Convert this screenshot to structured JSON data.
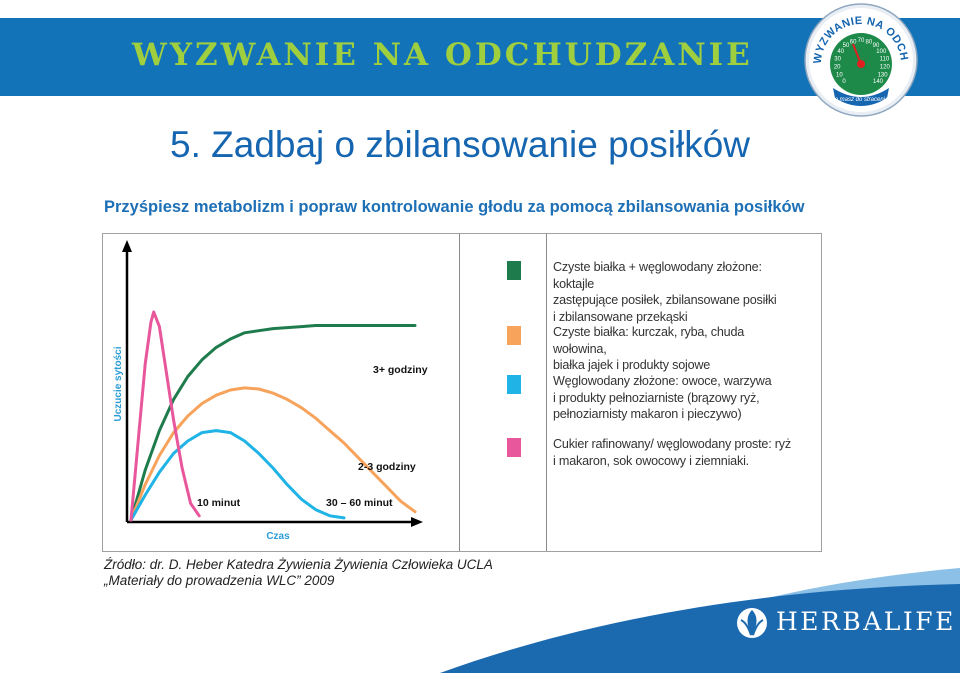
{
  "header": {
    "banner_title": "WYZWANIE NA ODCHUDZANIE",
    "badge": {
      "arc_text": "WYZWANIE NA ODCHUDZANIE",
      "bottom_text": "Co masz do stracenia?",
      "dial_numbers": [
        "0",
        "10",
        "20",
        "30",
        "40",
        "50",
        "60",
        "70",
        "80",
        "90",
        "100",
        "110",
        "120",
        "130",
        "140"
      ]
    },
    "colors": {
      "banner": "#1273b9",
      "banner_text": "#9fcf3f"
    }
  },
  "page": {
    "title": "5. Zadbaj o zbilansowanie posiłków",
    "subtitle": "Przyśpiesz metabolizm i popraw kontrolowanie głodu za pomocą zbilansowania posiłków"
  },
  "chart_data": {
    "type": "line",
    "xlabel": "Czas",
    "ylabel": "Uczucie sytości",
    "annotations": [
      "3+ godziny",
      "2-3 godziny",
      "10 minut",
      "30 – 60 minut"
    ],
    "series": [
      {
        "name": "Czyste białka + węglowodany złożone: koktajle zastępujące posiłek, zbilansowane posiłki i zbilansowane przekąski",
        "color": "#1e7c4c",
        "x": [
          0,
          0.05,
          0.1,
          0.15,
          0.2,
          0.25,
          0.3,
          0.35,
          0.4,
          0.45,
          0.5,
          0.55,
          0.6,
          0.65,
          0.7,
          0.75,
          0.8,
          0.85,
          0.9,
          0.95,
          1
        ],
        "y": [
          0,
          0.24,
          0.43,
          0.58,
          0.69,
          0.77,
          0.83,
          0.87,
          0.9,
          0.91,
          0.92,
          0.925,
          0.93,
          0.935,
          0.935,
          0.935,
          0.935,
          0.935,
          0.935,
          0.935,
          0.935
        ]
      },
      {
        "name": "Czyste białka: kurczak, ryba, chuda wołowina, białka jajek i produkty sojowe",
        "color": "#f7a35c",
        "x": [
          0,
          0.05,
          0.1,
          0.15,
          0.2,
          0.25,
          0.3,
          0.35,
          0.4,
          0.45,
          0.5,
          0.55,
          0.6,
          0.65,
          0.7,
          0.75,
          0.8,
          0.85,
          0.9,
          0.95,
          1
        ],
        "y": [
          0,
          0.17,
          0.31,
          0.42,
          0.5,
          0.56,
          0.6,
          0.625,
          0.635,
          0.63,
          0.61,
          0.58,
          0.54,
          0.49,
          0.43,
          0.37,
          0.3,
          0.23,
          0.16,
          0.09,
          0.04
        ]
      },
      {
        "name": "Węglowodany złożone: owoce, warzywa i produkty pełnoziarniste (brązowy ryż, pełnoziarnisty makaron i pieczywo)",
        "color": "#1fb3e6",
        "x": [
          0,
          0.05,
          0.1,
          0.15,
          0.2,
          0.25,
          0.3,
          0.35,
          0.4,
          0.45,
          0.5,
          0.55,
          0.6,
          0.65,
          0.7,
          0.75
        ],
        "y": [
          0,
          0.12,
          0.23,
          0.32,
          0.38,
          0.42,
          0.43,
          0.42,
          0.38,
          0.32,
          0.25,
          0.17,
          0.1,
          0.05,
          0.02,
          0.01
        ]
      },
      {
        "name": "Cukier rafinowany/ węglowodany proste: ryż i makaron, sok owocowy i ziemniaki.",
        "color": "#e8569b",
        "x": [
          0,
          0.03,
          0.05,
          0.07,
          0.08,
          0.1,
          0.12,
          0.15,
          0.18,
          0.21,
          0.24
        ],
        "y": [
          0,
          0.45,
          0.75,
          0.95,
          1.0,
          0.93,
          0.75,
          0.48,
          0.25,
          0.08,
          0.02
        ]
      }
    ],
    "grid": false,
    "legend_position": "right"
  },
  "legend": {
    "items": [
      {
        "color": "#1e7c4c",
        "lines": [
          "Czyste białka + węglowodany złożone: koktajle",
          "zastępujące posiłek, zbilansowane posiłki",
          "i zbilansowane przekąski"
        ]
      },
      {
        "color": "#f7a35c",
        "lines": [
          "Czyste białka: kurczak, ryba, chuda wołowina,",
          "białka jajek i produkty sojowe"
        ]
      },
      {
        "color": "#1fb3e6",
        "lines": [
          "Węglowodany złożone: owoce, warzywa",
          "i produkty pełnoziarniste (brązowy ryż,",
          "pełnoziarnisty makaron i pieczywo)"
        ]
      },
      {
        "color": "#e8569b",
        "lines": [
          "Cukier rafinowany/ węglowodany proste: ryż",
          "i makaron, sok owocowy i ziemniaki."
        ]
      }
    ]
  },
  "source": {
    "line1": "Źródło: dr. D. Heber Katedra Żywienia Żywienia Człowieka UCLA",
    "line2": "„Materiały do prowadzenia WLC” 2009"
  },
  "footer": {
    "brand": "HERBALIFE",
    "colors": {
      "wave_dark": "#1b6ab0",
      "wave_light": "#5fa3d8"
    }
  }
}
